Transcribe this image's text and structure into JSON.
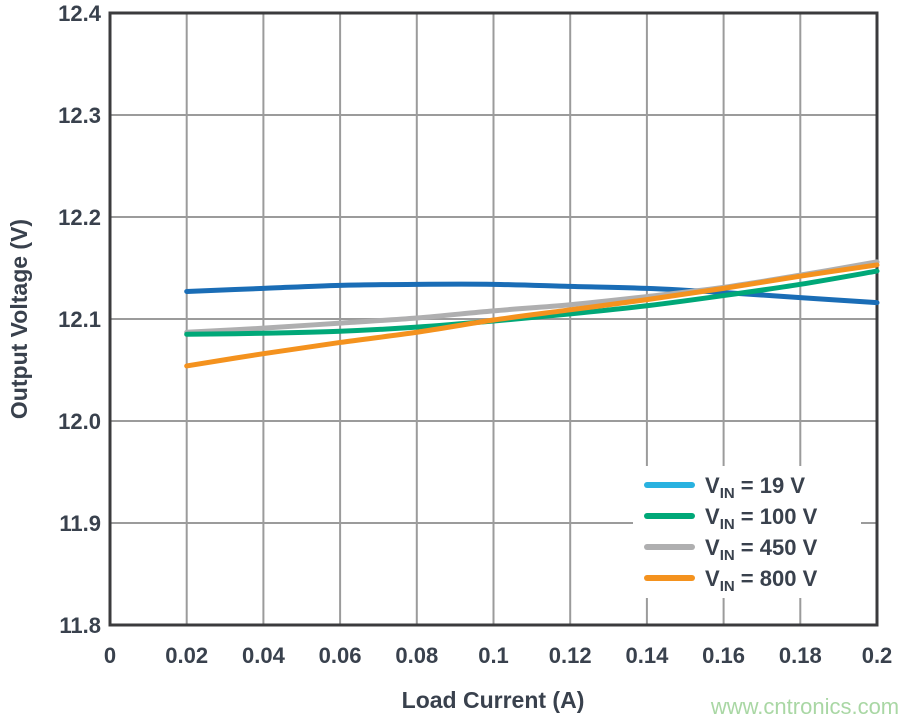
{
  "watermark": {
    "text": "www.cntronics.com"
  },
  "colors": {
    "grid": "#9b9b9b",
    "frame": "#3b3b3d",
    "label": "#39414d",
    "watermark": "#a9d7a4",
    "legend_bg": "#ffffff"
  },
  "chart_data": {
    "type": "line",
    "title": "",
    "xlabel": "Load Current (A)",
    "ylabel": "Output Voltage (V)",
    "xlim": [
      0,
      0.2
    ],
    "ylim": [
      11.8,
      12.4
    ],
    "grid": true,
    "legend_position": "lower right",
    "xticks": [
      0,
      0.02,
      0.04,
      0.06,
      0.08,
      0.1,
      0.12,
      0.14,
      0.16,
      0.18,
      0.2
    ],
    "xtick_labels": [
      "0",
      "0.02",
      "0.04",
      "0.06",
      "0.08",
      "0.1",
      "0.12",
      "0.14",
      "0.16",
      "0.18",
      "0.2"
    ],
    "yticks": [
      11.8,
      11.9,
      12.0,
      12.1,
      12.2,
      12.3,
      12.4
    ],
    "ytick_labels": [
      "11.8",
      "11.9",
      "12.0",
      "12.1",
      "12.2",
      "12.3",
      "12.4"
    ],
    "x": [
      0.02,
      0.04,
      0.06,
      0.08,
      0.1,
      0.12,
      0.14,
      0.16,
      0.18,
      0.2
    ],
    "draw_order": [
      0,
      2,
      1,
      3
    ],
    "series": [
      {
        "name": "VIN = 19 V",
        "legend": {
          "var": "V",
          "sub": "IN",
          "rest": " = 19 V"
        },
        "line_color": "#1a6db6",
        "legend_color": "#29b2e0",
        "values": [
          12.127,
          12.13,
          12.133,
          12.134,
          12.134,
          12.132,
          12.13,
          12.126,
          12.121,
          12.116
        ]
      },
      {
        "name": "VIN = 100 V",
        "legend": {
          "var": "V",
          "sub": "IN",
          "rest": " = 100 V"
        },
        "line_color": "#00a878",
        "legend_color": "#00a878",
        "values": [
          12.085,
          12.086,
          12.088,
          12.092,
          12.098,
          12.105,
          12.113,
          12.123,
          12.134,
          12.147
        ]
      },
      {
        "name": "VIN = 450 V",
        "legend": {
          "var": "V",
          "sub": "IN",
          "rest": " = 450 V"
        },
        "line_color": "#afafb0",
        "legend_color": "#afafb0",
        "values": [
          12.087,
          12.091,
          12.096,
          12.101,
          12.108,
          12.114,
          12.122,
          12.131,
          12.143,
          12.156
        ]
      },
      {
        "name": "VIN = 800 V",
        "legend": {
          "var": "V",
          "sub": "IN",
          "rest": " = 800 V"
        },
        "line_color": "#f4921e",
        "legend_color": "#f4921e",
        "values": [
          12.054,
          12.066,
          12.077,
          12.087,
          12.099,
          12.109,
          12.119,
          12.13,
          12.142,
          12.153
        ]
      }
    ]
  }
}
